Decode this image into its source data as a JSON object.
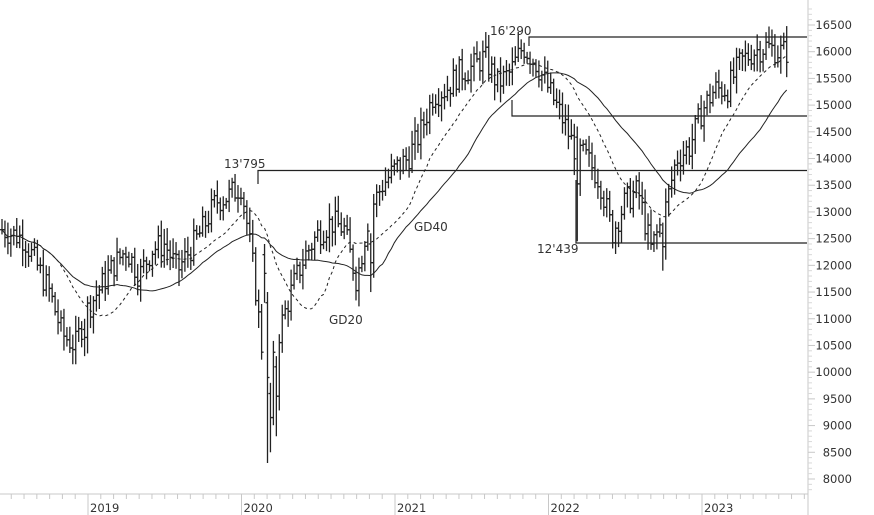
{
  "chart_data": {
    "type": "line",
    "subtype": "ohlc-bar",
    "title": "",
    "xlabel": "",
    "ylabel": "",
    "ylim": [
      7800,
      16800
    ],
    "y_ticks": [
      16500,
      16000,
      15500,
      15000,
      14500,
      14000,
      13500,
      13000,
      12500,
      12000,
      11500,
      11000,
      10500,
      10000,
      9500,
      9000,
      8500,
      8000
    ],
    "x_ticks": [
      "2019",
      "2020",
      "2021",
      "2022",
      "2023"
    ],
    "grid": false,
    "legend": "none",
    "annotations": [
      {
        "text": "13'795",
        "kind": "resistance-level",
        "value": 13795
      },
      {
        "text": "16'290",
        "kind": "resistance-level",
        "value": 16290
      },
      {
        "text": "12'439",
        "kind": "support-level",
        "value": 12439
      },
      {
        "text": "GD20",
        "kind": "moving-average-label"
      },
      {
        "text": "GD40",
        "kind": "moving-average-label"
      }
    ],
    "horizontal_lines": [
      {
        "value": 13795,
        "from": "2019-12",
        "to": "end"
      },
      {
        "value": 16290,
        "from": "2021-11",
        "to": "end"
      },
      {
        "value": 14800,
        "from": "2021-10",
        "to": "end"
      },
      {
        "value": 12439,
        "from": "2022-01",
        "to": "end"
      }
    ],
    "series": [
      {
        "name": "Price (weekly close, approx.)",
        "x": [
          "2018-04",
          "2018-06",
          "2018-08",
          "2018-10",
          "2018-11",
          "2018-12",
          "2019-01",
          "2019-02",
          "2019-03",
          "2019-04",
          "2019-05",
          "2019-06",
          "2019-07",
          "2019-08",
          "2019-09",
          "2019-10",
          "2019-11",
          "2019-12",
          "2020-01",
          "2020-02",
          "2020-03",
          "2020-04",
          "2020-05",
          "2020-06",
          "2020-07",
          "2020-08",
          "2020-09",
          "2020-10",
          "2020-11",
          "2020-12",
          "2021-01",
          "2021-02",
          "2021-03",
          "2021-04",
          "2021-05",
          "2021-06",
          "2021-07",
          "2021-08",
          "2021-09",
          "2021-10",
          "2021-11",
          "2021-12",
          "2022-01",
          "2022-02",
          "2022-03",
          "2022-04",
          "2022-05",
          "2022-06",
          "2022-07",
          "2022-08",
          "2022-09",
          "2022-10",
          "2022-11",
          "2022-12",
          "2023-01",
          "2023-02",
          "2023-03",
          "2023-04",
          "2023-05",
          "2023-06",
          "2023-07"
        ],
        "values": [
          13100,
          12700,
          12500,
          11500,
          10700,
          10500,
          11200,
          11600,
          12000,
          12300,
          11800,
          12300,
          12400,
          11900,
          12300,
          12700,
          13200,
          13300,
          13500,
          11800,
          9500,
          10800,
          11600,
          12200,
          12600,
          12800,
          12700,
          11700,
          13000,
          13500,
          13800,
          14000,
          14500,
          15200,
          15300,
          15600,
          15700,
          15900,
          15400,
          15600,
          16100,
          15800,
          15300,
          14800,
          14200,
          14000,
          13600,
          12600,
          13200,
          13400,
          12300,
          12900,
          14000,
          14200,
          14900,
          15300,
          15300,
          15800,
          16000,
          16100,
          16000
        ]
      },
      {
        "name": "GD20",
        "style": "dashed",
        "values_approx": "20-week moving average"
      },
      {
        "name": "GD40",
        "style": "solid",
        "values_approx": "40-week moving average"
      }
    ]
  },
  "axis": {
    "y_labels": [
      "16500",
      "16000",
      "15500",
      "15000",
      "14500",
      "14000",
      "13500",
      "13000",
      "12500",
      "12000",
      "11500",
      "11000",
      "10500",
      "10000",
      "9500",
      "9000",
      "8500",
      "8000"
    ],
    "x_labels": [
      "2019",
      "2020",
      "2021",
      "2022",
      "2023"
    ]
  },
  "labels": {
    "level_13795": "13'795",
    "level_16290": "16'290",
    "level_12439": "12'439",
    "gd20": "GD20",
    "gd40": "GD40"
  },
  "colors": {
    "bars": "#222222",
    "lines": "#222222",
    "axis": "#c8c8c8",
    "text": "#333333"
  }
}
